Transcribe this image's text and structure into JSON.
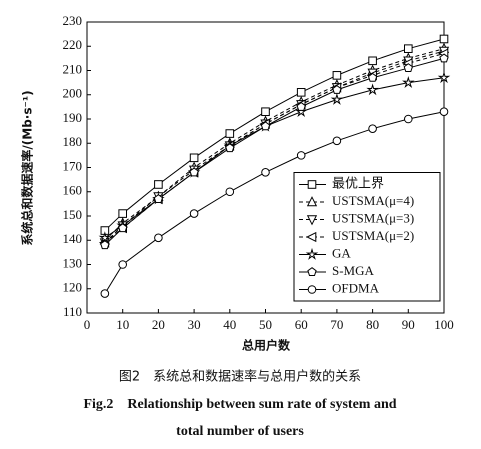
{
  "chart_data": {
    "type": "line",
    "ylabel": "系统总和数据速率/(Mb·s⁻¹)",
    "xlabel": "总用户数",
    "caption": [
      "图2　系统总和数据速率与总用户数的关系",
      "Fig.2　Relationship between sum rate of system and",
      "total number of users"
    ],
    "x": [
      5,
      10,
      20,
      30,
      40,
      50,
      60,
      70,
      80,
      90,
      100
    ],
    "xlim": [
      0,
      100
    ],
    "xticks": [
      0,
      10,
      20,
      30,
      40,
      50,
      60,
      70,
      80,
      90,
      100
    ],
    "ylim": [
      110,
      230
    ],
    "yticks": [
      110,
      120,
      130,
      140,
      150,
      160,
      170,
      180,
      190,
      200,
      210,
      220,
      230
    ],
    "legend": "lower right",
    "series": [
      {
        "name": "最优上界",
        "color": "#000000",
        "marker": "square",
        "dash": false,
        "values": [
          144,
          151,
          163,
          174,
          184,
          193,
          201,
          208,
          214,
          219,
          223
        ]
      },
      {
        "name": "USTSMA(μ=4)",
        "color": "#000000",
        "marker": "triangle-up",
        "dash": true,
        "values": [
          140,
          147,
          158,
          170,
          180,
          189,
          197,
          204,
          210,
          215,
          219
        ]
      },
      {
        "name": "USTSMA(μ=3)",
        "color": "#000000",
        "marker": "triangle-down",
        "dash": true,
        "values": [
          139,
          146,
          158,
          169,
          179,
          188,
          196,
          203,
          209,
          214,
          218
        ]
      },
      {
        "name": "USTSMA(μ=2)",
        "color": "#000000",
        "marker": "triangle-left",
        "dash": true,
        "values": [
          139,
          145,
          157,
          168,
          179,
          188,
          196,
          203,
          208,
          213,
          217
        ]
      },
      {
        "name": "GA",
        "color": "#000000",
        "marker": "star",
        "dash": false,
        "values": [
          141,
          146,
          157,
          168,
          179,
          187,
          193,
          198,
          202,
          205,
          207
        ]
      },
      {
        "name": "S-MGA",
        "color": "#000000",
        "marker": "pentagon",
        "dash": false,
        "values": [
          138,
          145,
          157,
          168,
          178,
          187,
          195,
          202,
          207,
          211,
          215
        ]
      },
      {
        "name": "OFDMA",
        "color": "#000000",
        "marker": "circle",
        "dash": false,
        "values": [
          118,
          130,
          141,
          151,
          160,
          168,
          175,
          181,
          186,
          190,
          193
        ]
      }
    ]
  }
}
